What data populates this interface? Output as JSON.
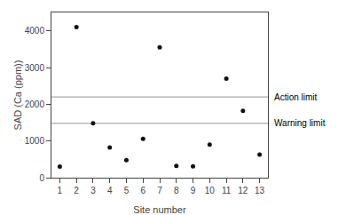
{
  "chart_data": {
    "type": "scatter",
    "x": [
      1,
      2,
      3,
      4,
      5,
      6,
      7,
      8,
      9,
      10,
      11,
      12,
      13
    ],
    "values": [
      300,
      4100,
      1480,
      820,
      480,
      1060,
      3550,
      320,
      310,
      900,
      2700,
      1820,
      630
    ],
    "color": "#111111",
    "xlabel": "Site number",
    "ylabel": "SAD (Ca (ppm))",
    "xlim": [
      0.5,
      13.5
    ],
    "ylim": [
      0,
      4500
    ],
    "xticks": [
      1,
      2,
      3,
      4,
      5,
      6,
      7,
      8,
      9,
      10,
      11,
      12,
      13
    ],
    "yticks": [
      0,
      1000,
      2000,
      3000,
      4000
    ],
    "reference_lines": [
      {
        "label": "Action limit",
        "value": 2200,
        "color": "#aaaaaa"
      },
      {
        "label": "Warning limit",
        "value": 1480,
        "color": "#aaaaaa"
      }
    ],
    "grid": false
  }
}
